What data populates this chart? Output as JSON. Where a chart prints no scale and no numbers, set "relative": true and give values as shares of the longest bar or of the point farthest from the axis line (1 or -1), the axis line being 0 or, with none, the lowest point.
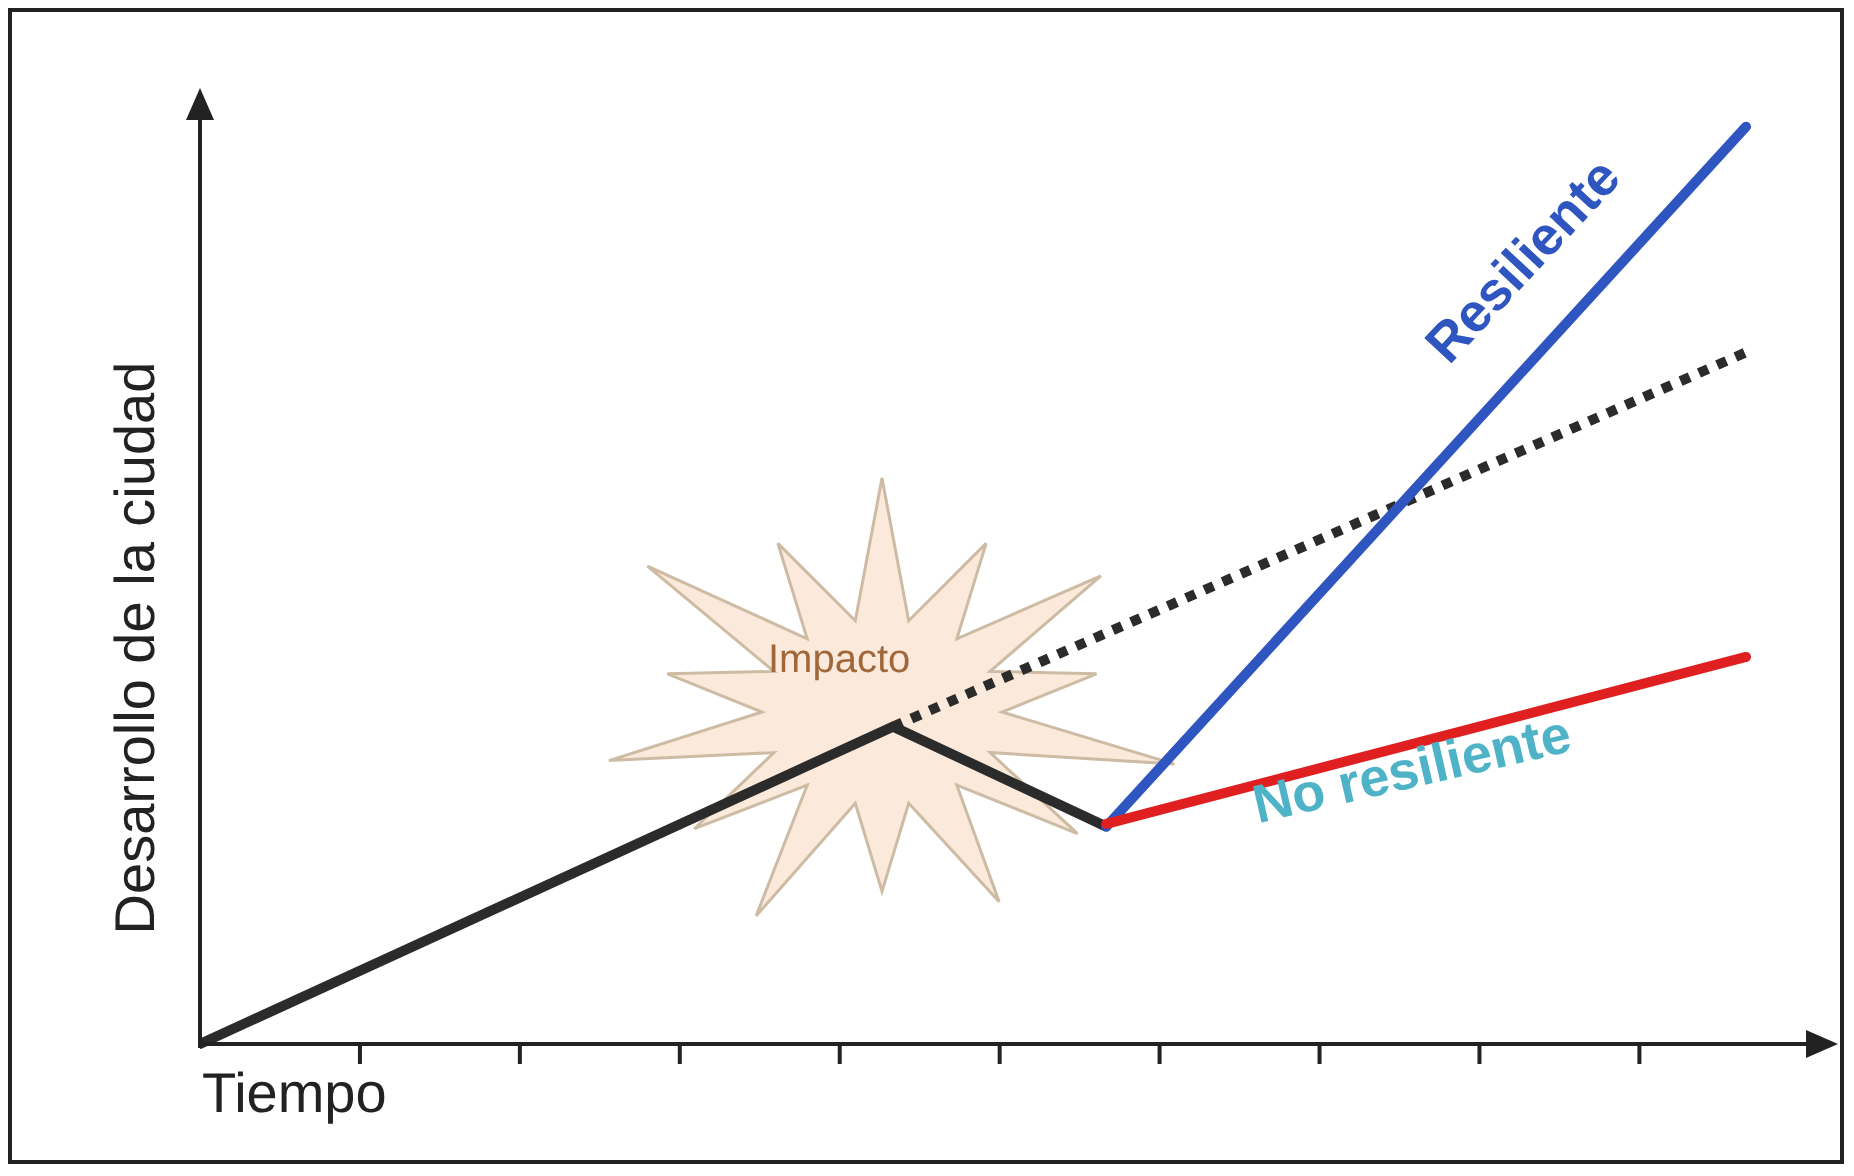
{
  "chart_data": {
    "type": "line",
    "relative": true,
    "xlabel": "Tiempo",
    "ylabel": "Desarrollo de la ciudad",
    "annotations": [
      "Impacto"
    ],
    "marker": "none",
    "categories": [
      null,
      null,
      null,
      null,
      null,
      null,
      null,
      null,
      null,
      null,
      null,
      null,
      null,
      null,
      null,
      null,
      null,
      null,
      null,
      null,
      null,
      null,
      null,
      null,
      null,
      null,
      null,
      null,
      null,
      null
    ],
    "series": [
      {
        "color": "#2b2b2b",
        "line_style": "solid",
        "values": [
          0,
          null,
          null,
          null,
          null,
          null,
          null,
          null,
          null,
          null,
          null,
          null,
          null,
          0.346,
          null,
          null,
          null,
          0.237,
          null,
          null,
          null,
          null,
          null,
          null,
          null,
          null,
          null,
          null,
          null,
          null
        ]
      },
      {
        "color": "#2b2b2b",
        "line_style": "dotted",
        "values": [
          null,
          null,
          null,
          null,
          null,
          null,
          null,
          null,
          null,
          null,
          null,
          null,
          null,
          0.346,
          null,
          null,
          null,
          null,
          null,
          null,
          null,
          null,
          null,
          null,
          null,
          null,
          null,
          null,
          null,
          0.754
        ]
      },
      {
        "name": "Resiliente",
        "color": "#2e55c0",
        "line_style": "solid",
        "values": [
          null,
          null,
          null,
          null,
          null,
          null,
          null,
          null,
          null,
          null,
          null,
          null,
          null,
          null,
          null,
          null,
          null,
          0.237,
          null,
          null,
          null,
          null,
          null,
          null,
          null,
          null,
          null,
          null,
          null,
          1
        ]
      },
      {
        "name": "No resiliente",
        "color": "#e02020",
        "line_style": "solid",
        "values": [
          null,
          null,
          null,
          null,
          null,
          null,
          null,
          null,
          null,
          null,
          null,
          null,
          null,
          null,
          null,
          null,
          null,
          0.24,
          null,
          null,
          null,
          null,
          null,
          null,
          null,
          null,
          null,
          null,
          null,
          0.422
        ]
      }
    ]
  }
}
